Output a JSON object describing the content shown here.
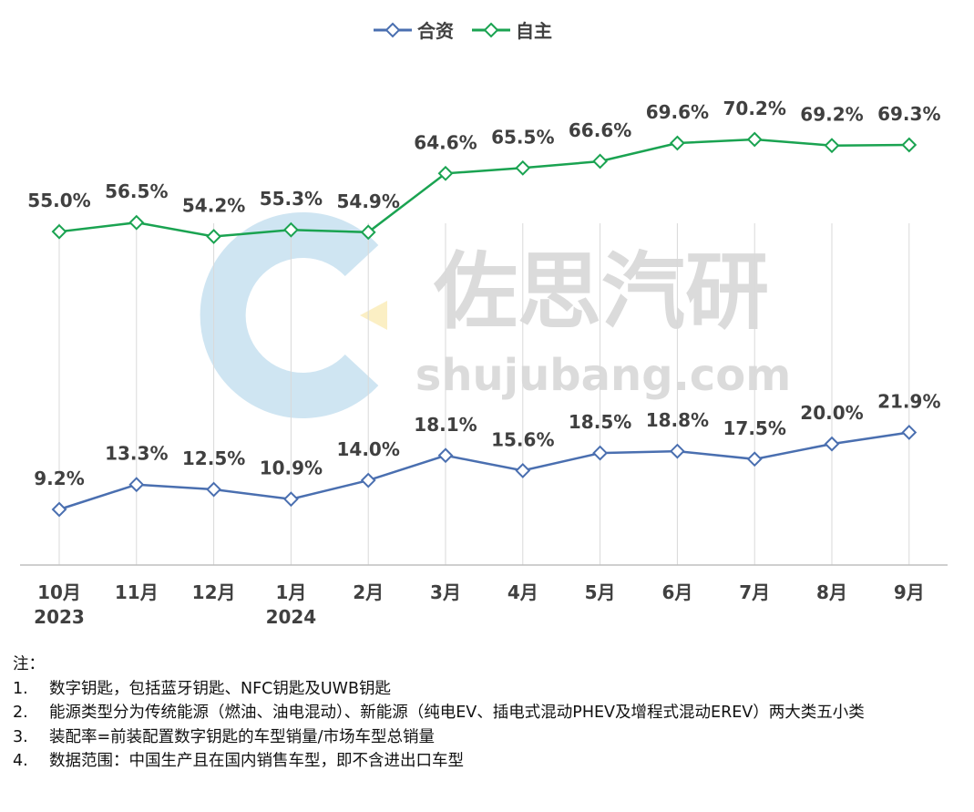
{
  "legend": {
    "series_a": "合资",
    "series_b": "自主"
  },
  "colors": {
    "series_a": "#4a6fb0",
    "series_b": "#1aa351",
    "gridline": "#d9d9d9",
    "axis": "#bfbfbf"
  },
  "watermark": {
    "brand": "佐思汽研",
    "site": "shujubang.com"
  },
  "chart_data": {
    "type": "line",
    "categories": [
      "10月",
      "11月",
      "12月",
      "1月",
      "2月",
      "3月",
      "4月",
      "5月",
      "6月",
      "7月",
      "8月",
      "9月"
    ],
    "category_years": [
      "2023",
      "",
      "",
      "2024",
      "",
      "",
      "",
      "",
      "",
      "",
      "",
      ""
    ],
    "series": [
      {
        "name": "合资",
        "values": [
          9.2,
          13.3,
          12.5,
          10.9,
          14.0,
          18.1,
          15.6,
          18.5,
          18.8,
          17.5,
          20.0,
          21.9
        ],
        "labels": [
          "9.2%",
          "13.3%",
          "12.5%",
          "10.9%",
          "14.0%",
          "18.1%",
          "15.6%",
          "18.5%",
          "18.8%",
          "17.5%",
          "20.0%",
          "21.9%"
        ]
      },
      {
        "name": "自主",
        "values": [
          55.0,
          56.5,
          54.2,
          55.3,
          54.9,
          64.6,
          65.5,
          66.6,
          69.6,
          70.2,
          69.2,
          69.3
        ],
        "labels": [
          "55.0%",
          "56.5%",
          "54.2%",
          "55.3%",
          "54.9%",
          "64.6%",
          "65.5%",
          "66.6%",
          "69.6%",
          "70.2%",
          "69.2%",
          "69.3%"
        ]
      }
    ],
    "ylim": [
      0,
      80
    ],
    "grid": "vertical lines",
    "legend_position": "top-center"
  },
  "notes": {
    "heading": "注：",
    "items": [
      {
        "num": "1.",
        "text": "数字钥匙，包括蓝牙钥匙、NFC钥匙及UWB钥匙"
      },
      {
        "num": "2.",
        "text": "能源类型分为传统能源（燃油、油电混动）、新能源（纯电EV、插电式混动PHEV及增程式混动EREV）两大类五小类"
      },
      {
        "num": "3.",
        "text": "装配率=前装配置数字钥匙的车型销量/市场车型总销量"
      },
      {
        "num": "4.",
        "text": "数据范围：中国生产且在国内销售车型，即不含进出口车型"
      }
    ]
  }
}
